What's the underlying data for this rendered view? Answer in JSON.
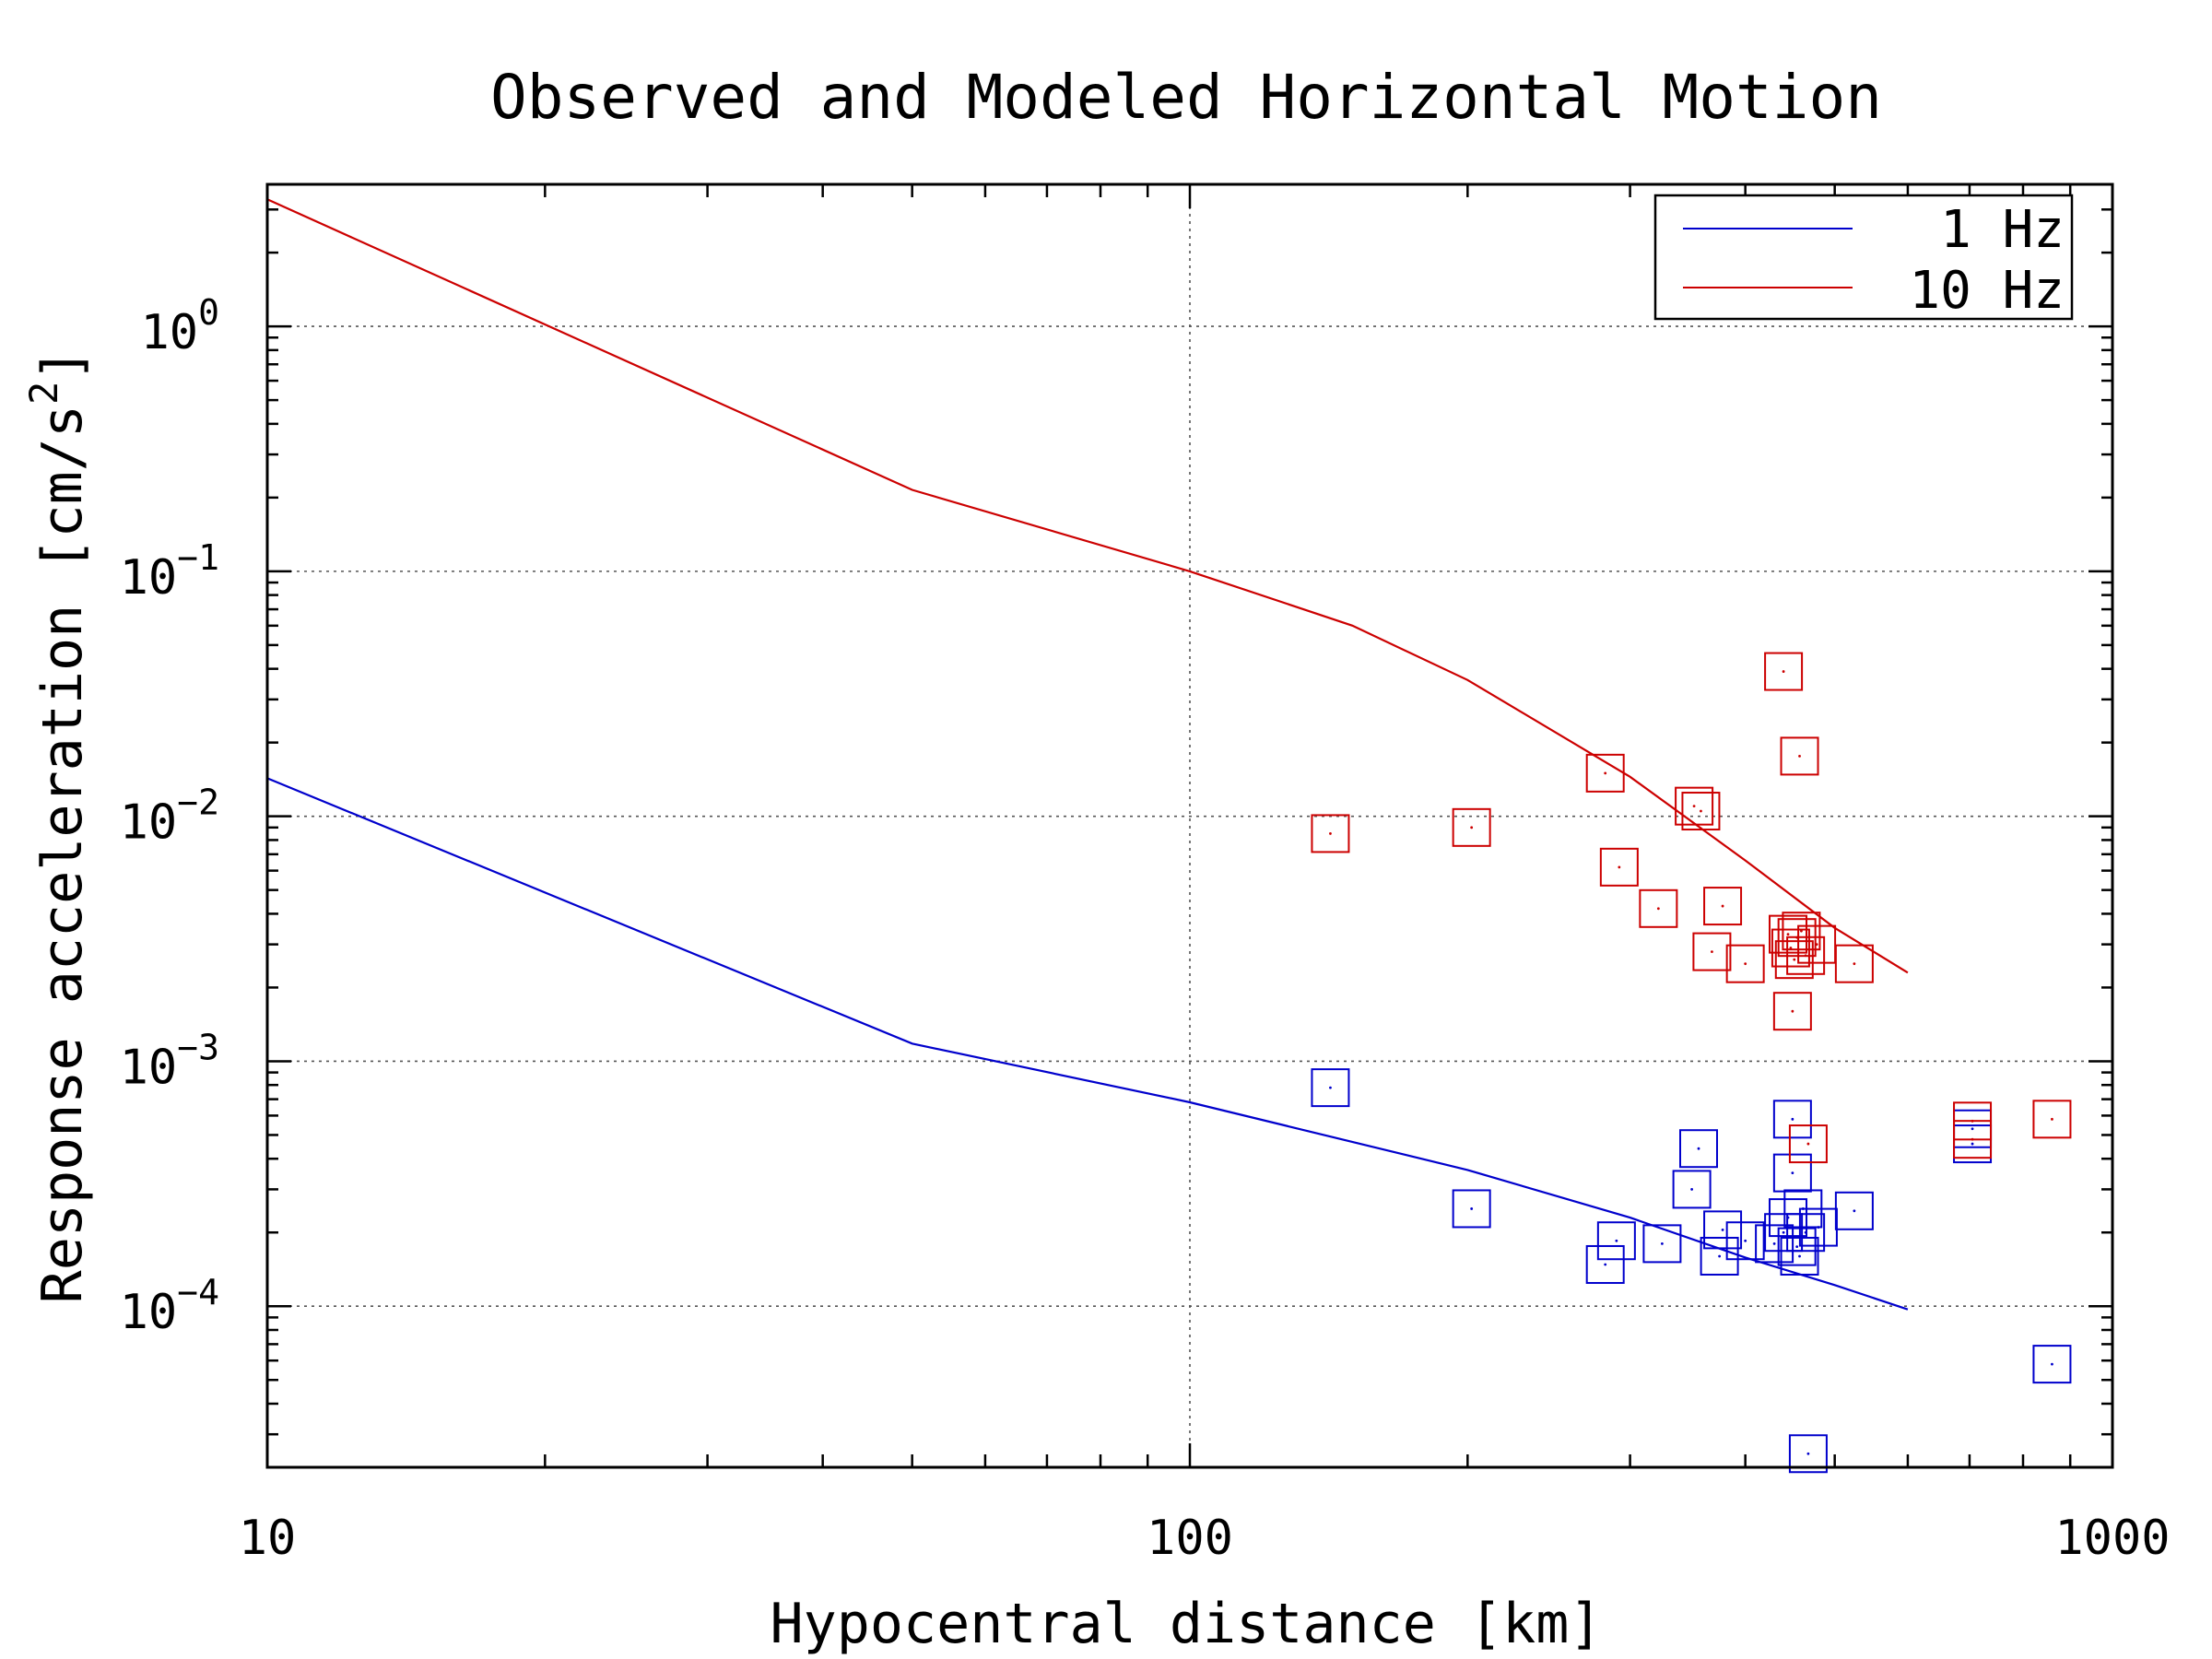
{
  "chart_data": {
    "type": "scatter",
    "title": "Observed and Modeled Horizontal Motion",
    "xlabel": "Hypocentral distance [km]",
    "ylabel": "Response acceleration [cm/s",
    "ylabel_superscript": "2",
    "ylabel_close": "]",
    "x_scale": "log",
    "y_scale": "log",
    "xlim": [
      10,
      1000
    ],
    "ylim": [
      2.2e-05,
      3.8
    ],
    "x_ticks": [
      {
        "value": 10,
        "label": "10"
      },
      {
        "value": 100,
        "label": "100"
      },
      {
        "value": 1000,
        "label": "1000"
      }
    ],
    "y_ticks": [
      {
        "value": 1,
        "base": "10",
        "exp": "0"
      },
      {
        "value": 0.1,
        "base": "10",
        "exp": "−1"
      },
      {
        "value": 0.01,
        "base": "10",
        "exp": "−2"
      },
      {
        "value": 0.001,
        "base": "10",
        "exp": "−3"
      },
      {
        "value": 0.0001,
        "base": "10",
        "exp": "−4"
      }
    ],
    "grid": "dotted at major ticks",
    "legend_position": "top-right",
    "series": [
      {
        "name": "1 Hz",
        "color": "#0000cc",
        "model_line": [
          [
            10,
            0.0143
          ],
          [
            50,
            0.00118
          ],
          [
            100,
            0.00068
          ],
          [
            200,
            0.00036
          ],
          [
            300,
            0.00023
          ],
          [
            400,
            0.000158
          ],
          [
            500,
            0.000122
          ],
          [
            600,
            9.7e-05
          ]
        ],
        "observed": [
          [
            142,
            0.00078
          ],
          [
            202,
            0.00025
          ],
          [
            282,
            0.000148
          ],
          [
            290,
            0.000185
          ],
          [
            325,
            0.00018
          ],
          [
            350,
            0.0003
          ],
          [
            356,
            0.00044
          ],
          [
            375,
            0.00016
          ],
          [
            378,
            0.000205
          ],
          [
            400,
            0.000185
          ],
          [
            430,
            0.00018
          ],
          [
            440,
            0.0002
          ],
          [
            445,
            0.00023
          ],
          [
            450,
            0.00058
          ],
          [
            450,
            0.00035
          ],
          [
            455,
            0.000175
          ],
          [
            458,
            0.00016
          ],
          [
            462,
            0.00025
          ],
          [
            465,
            0.0002
          ],
          [
            468,
            2.5e-05
          ],
          [
            480,
            0.00021
          ],
          [
            525,
            0.000245
          ],
          [
            705,
            0.00046
          ],
          [
            705,
            0.00053
          ],
          [
            860,
            5.8e-05
          ]
        ]
      },
      {
        "name": "10 Hz",
        "color": "#cc0000",
        "model_line": [
          [
            10,
            3.3
          ],
          [
            50,
            0.215
          ],
          [
            100,
            0.1
          ],
          [
            150,
            0.06
          ],
          [
            200,
            0.036
          ],
          [
            300,
            0.0145
          ],
          [
            400,
            0.0066
          ],
          [
            500,
            0.0035
          ],
          [
            600,
            0.0023
          ]
        ],
        "observed": [
          [
            142,
            0.0085
          ],
          [
            202,
            0.009
          ],
          [
            282,
            0.015
          ],
          [
            292,
            0.0062
          ],
          [
            322,
            0.0042
          ],
          [
            352,
            0.011
          ],
          [
            358,
            0.0105
          ],
          [
            368,
            0.0028
          ],
          [
            378,
            0.0043
          ],
          [
            400,
            0.0025
          ],
          [
            440,
            0.039
          ],
          [
            445,
            0.0033
          ],
          [
            448,
            0.0029
          ],
          [
            450,
            0.0016
          ],
          [
            452,
            0.0026
          ],
          [
            455,
            0.0032
          ],
          [
            458,
            0.0176
          ],
          [
            460,
            0.0034
          ],
          [
            465,
            0.0027
          ],
          [
            468,
            0.00046
          ],
          [
            478,
            0.003
          ],
          [
            525,
            0.0025
          ],
          [
            705,
            0.00057
          ],
          [
            705,
            0.00048
          ],
          [
            860,
            0.00058
          ]
        ]
      }
    ]
  }
}
